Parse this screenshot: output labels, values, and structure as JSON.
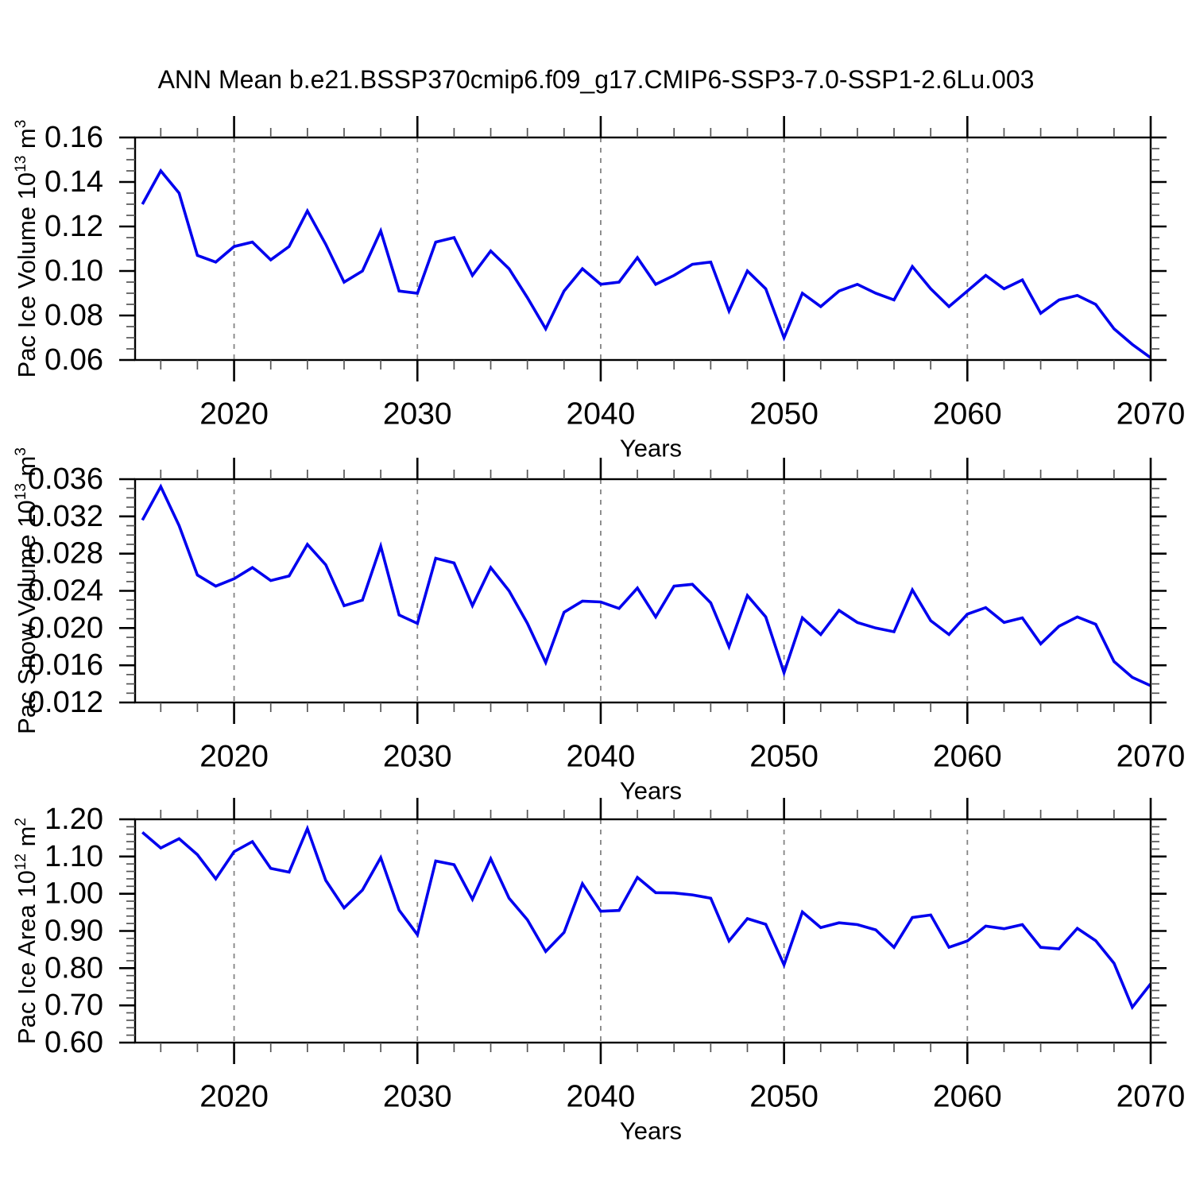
{
  "title": "ANN Mean b.e21.BSSP370cmip6.f09_g17.CMIP6-SSP3-7.0-SSP1-2.6Lu.003",
  "colors": {
    "line": "#0000ee",
    "grid": "#848484",
    "axis": "#000000",
    "minor_tick": "#555555",
    "background": "#ffffff"
  },
  "chart_data": {
    "type": "line",
    "title": "ANN Mean b.e21.BSSP370cmip6.f09_g17.CMIP6-SSP3-7.0-SSP1-2.6Lu.003",
    "xlabel": "Years",
    "x_range": [
      2014.6,
      2070
    ],
    "x_major_ticks": [
      2020,
      2030,
      2040,
      2050,
      2060,
      2070
    ],
    "x_tick_labels": [
      "2020",
      "2030",
      "2040",
      "2050",
      "2060",
      "2070"
    ],
    "x_minor_step": 2,
    "grid_years": [
      2020,
      2030,
      2040,
      2050,
      2060
    ],
    "grid_style": "dashed",
    "legend": "none",
    "years": [
      2015,
      2016,
      2017,
      2018,
      2019,
      2020,
      2021,
      2022,
      2023,
      2024,
      2025,
      2026,
      2027,
      2028,
      2029,
      2030,
      2031,
      2032,
      2033,
      2034,
      2035,
      2036,
      2037,
      2038,
      2039,
      2040,
      2041,
      2042,
      2043,
      2044,
      2045,
      2046,
      2047,
      2048,
      2049,
      2050,
      2051,
      2052,
      2053,
      2054,
      2055,
      2056,
      2057,
      2058,
      2059,
      2060,
      2061,
      2062,
      2063,
      2064,
      2065,
      2066,
      2067,
      2068,
      2069,
      2070
    ],
    "panels": [
      {
        "name": "pac-ice-volume",
        "ylabel_text": "Pac Ice Volume 10^13 m^3",
        "ylabel_parts": [
          {
            "t": "Pac Ice Volume 10"
          },
          {
            "t": "13",
            "sup": true
          },
          {
            "t": " m"
          },
          {
            "t": "3",
            "sup": true
          }
        ],
        "ylim": [
          0.06,
          0.16
        ],
        "ytick_values": [
          0.06,
          0.08,
          0.1,
          0.12,
          0.14,
          0.16
        ],
        "ytick_labels": [
          "0.06",
          "0.08",
          "0.10",
          "0.12",
          "0.14",
          "0.16"
        ],
        "yminor_step": 0.005,
        "values": [
          0.13,
          0.145,
          0.135,
          0.107,
          0.104,
          0.111,
          0.113,
          0.105,
          0.111,
          0.127,
          0.112,
          0.095,
          0.1,
          0.118,
          0.091,
          0.09,
          0.113,
          0.115,
          0.098,
          0.109,
          0.101,
          0.088,
          0.074,
          0.091,
          0.101,
          0.094,
          0.095,
          0.106,
          0.094,
          0.098,
          0.103,
          0.104,
          0.082,
          0.1,
          0.092,
          0.07,
          0.09,
          0.084,
          0.091,
          0.094,
          0.09,
          0.087,
          0.102,
          0.092,
          0.084,
          0.091,
          0.098,
          0.092,
          0.096,
          0.081,
          0.087,
          0.089,
          0.085,
          0.074,
          0.067,
          0.061
        ]
      },
      {
        "name": "pac-snow-volume",
        "ylabel_text": "Pac Snow Volume 10^13 m^3",
        "ylabel_parts": [
          {
            "t": "Pac Snow Volume 10"
          },
          {
            "t": "13",
            "sup": true
          },
          {
            "t": " m"
          },
          {
            "t": "3",
            "sup": true
          }
        ],
        "ylim": [
          0.012,
          0.036
        ],
        "ytick_values": [
          0.012,
          0.016,
          0.02,
          0.024,
          0.028,
          0.032,
          0.036
        ],
        "ytick_labels": [
          "0.012",
          "0.016",
          "0.020",
          "0.024",
          "0.028",
          "0.032",
          "0.036"
        ],
        "yminor_step": 0.001,
        "values": [
          0.0316,
          0.0352,
          0.031,
          0.0257,
          0.0245,
          0.0253,
          0.0265,
          0.0251,
          0.0256,
          0.029,
          0.0268,
          0.0224,
          0.023,
          0.0288,
          0.0214,
          0.0205,
          0.0275,
          0.027,
          0.0224,
          0.0265,
          0.024,
          0.0205,
          0.0163,
          0.0217,
          0.0229,
          0.0228,
          0.0221,
          0.0243,
          0.0212,
          0.0245,
          0.0247,
          0.0227,
          0.018,
          0.0235,
          0.0212,
          0.0152,
          0.0211,
          0.0193,
          0.0219,
          0.0206,
          0.02,
          0.0196,
          0.0241,
          0.0208,
          0.0193,
          0.0215,
          0.0222,
          0.0206,
          0.0211,
          0.0183,
          0.0202,
          0.0212,
          0.0204,
          0.0164,
          0.0147,
          0.0138
        ]
      },
      {
        "name": "pac-ice-area",
        "ylabel_text": "Pac Ice Area 10^12 m^2",
        "ylabel_parts": [
          {
            "t": "Pac Ice Area 10"
          },
          {
            "t": "12",
            "sup": true
          },
          {
            "t": " m"
          },
          {
            "t": "2",
            "sup": true
          }
        ],
        "ylim": [
          0.6,
          1.2
        ],
        "ytick_values": [
          0.6,
          0.7,
          0.8,
          0.9,
          1.0,
          1.1,
          1.2
        ],
        "ytick_labels": [
          "0.60",
          "0.70",
          "0.80",
          "0.90",
          "1.00",
          "1.10",
          "1.20"
        ],
        "yminor_step": 0.02,
        "values": [
          1.165,
          1.123,
          1.148,
          1.105,
          1.04,
          1.113,
          1.14,
          1.068,
          1.058,
          1.175,
          1.036,
          0.962,
          1.01,
          1.097,
          0.956,
          0.89,
          1.088,
          1.078,
          0.985,
          1.094,
          0.988,
          0.93,
          0.845,
          0.896,
          1.027,
          0.953,
          0.955,
          1.044,
          1.003,
          1.002,
          0.997,
          0.988,
          0.873,
          0.933,
          0.918,
          0.809,
          0.951,
          0.909,
          0.922,
          0.917,
          0.903,
          0.856,
          0.936,
          0.943,
          0.856,
          0.873,
          0.913,
          0.906,
          0.917,
          0.856,
          0.852,
          0.907,
          0.874,
          0.813,
          0.695,
          0.758
        ]
      }
    ]
  }
}
